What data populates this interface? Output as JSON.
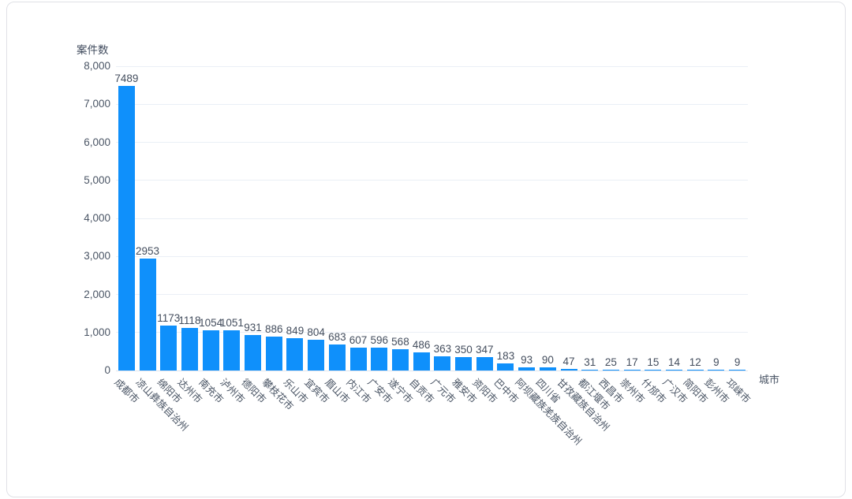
{
  "accent_color": "#0f90fb",
  "chart_data": {
    "type": "bar",
    "title": "案件数",
    "ylabel": "案件数",
    "xlabel": "城市",
    "categories": [
      "成都市",
      "凉山彝族自治州",
      "绵阳市",
      "达州市",
      "南充市",
      "泸州市",
      "德阳市",
      "攀枝花市",
      "乐山市",
      "宜宾市",
      "眉山市",
      "内江市",
      "广安市",
      "遂宁市",
      "自贡市",
      "广元市",
      "雅安市",
      "资阳市",
      "巴中市",
      "阿坝藏族羌族自治州",
      "四川省",
      "甘孜藏族自治州",
      "都江堰市",
      "西昌市",
      "崇州市",
      "什邡市",
      "广汉市",
      "简阳市",
      "彭州市",
      "邛崃市"
    ],
    "values": [
      7489,
      2953,
      1173,
      1118,
      1054,
      1051,
      931,
      886,
      849,
      804,
      683,
      607,
      596,
      568,
      486,
      363,
      350,
      347,
      183,
      93,
      90,
      47,
      31,
      25,
      17,
      15,
      14,
      12,
      9,
      9
    ],
    "ylim": [
      0,
      8000
    ],
    "ytick_step": 1000,
    "ytick_labels": [
      "0",
      "1,000",
      "2,000",
      "3,000",
      "4,000",
      "5,000",
      "6,000",
      "7,000",
      "8,000"
    ],
    "grid": true,
    "legend": null,
    "bar_color": "#0f90fb",
    "grid_color": "#eaeff6",
    "axis_line_color": "#dfe4ec",
    "text_color": "#4a5565"
  }
}
